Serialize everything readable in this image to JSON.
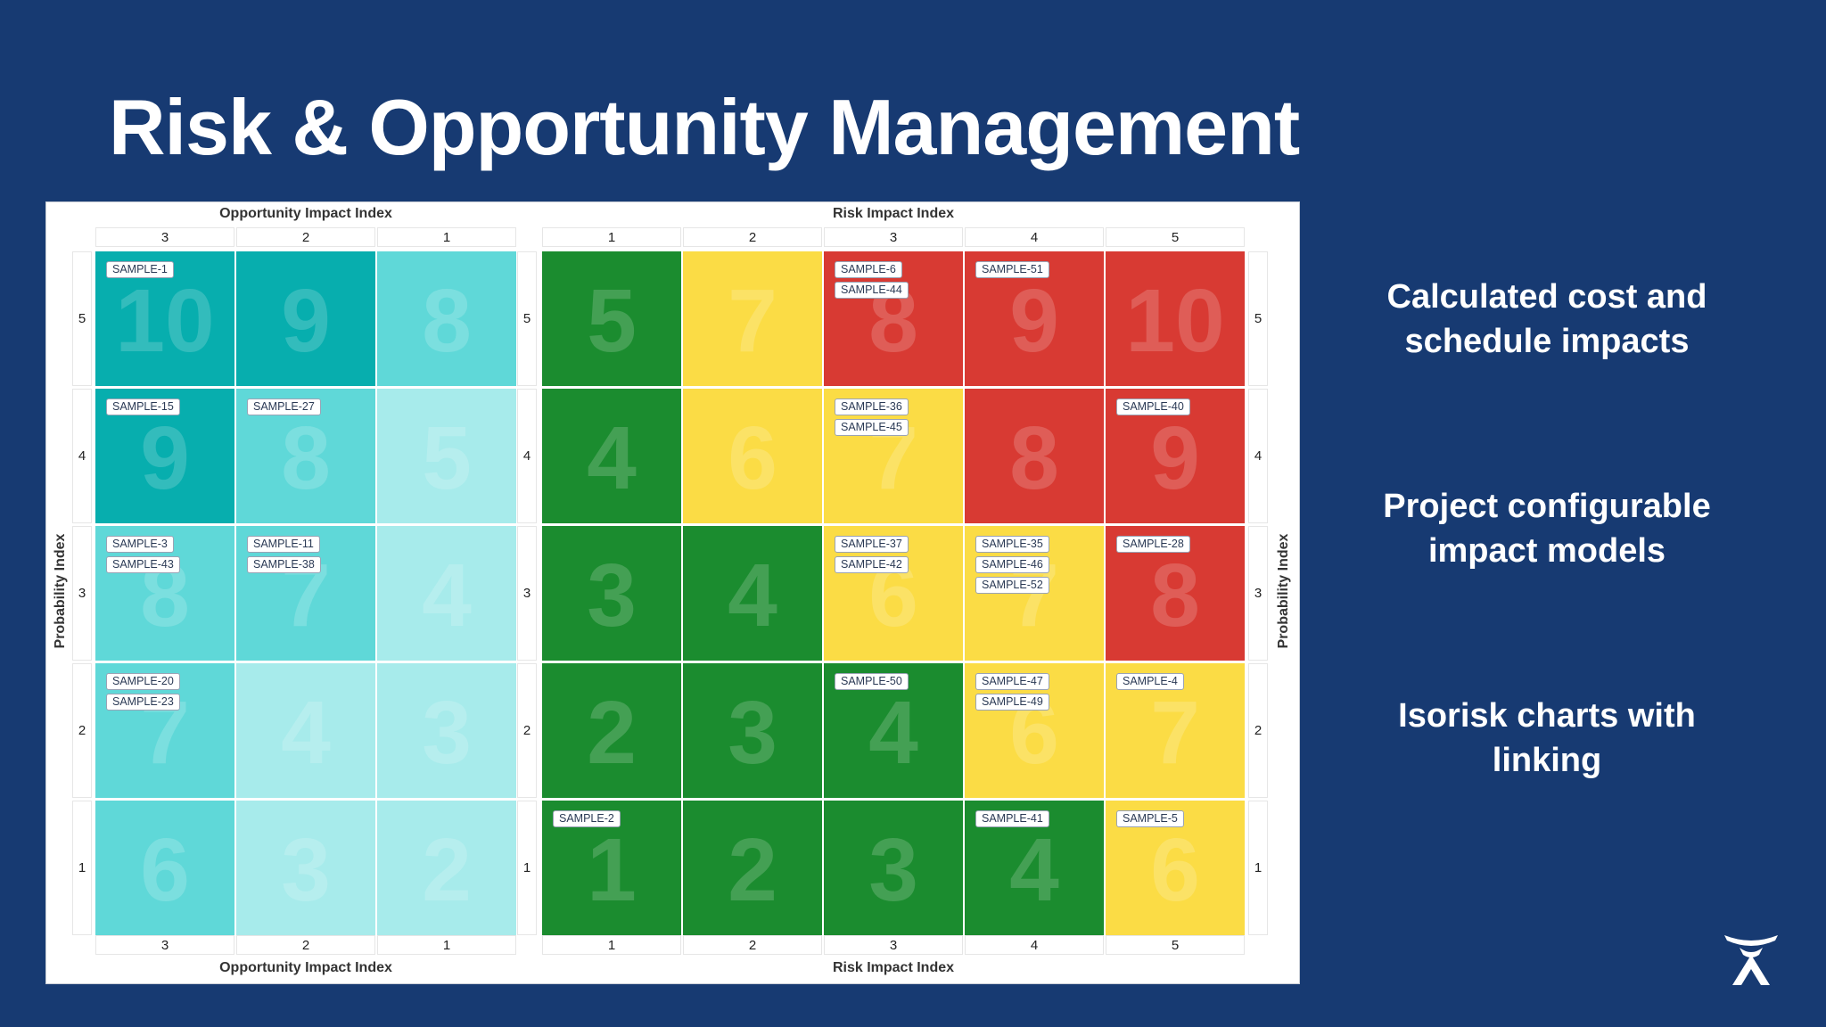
{
  "slide": {
    "title": "Risk & Opportunity Management",
    "bullets": [
      "Calculated cost and schedule impacts",
      "Project configurable impact  models",
      "Isorisk charts with linking"
    ],
    "logo_icon": "atlassian-logo-icon"
  },
  "colors": {
    "background": "#173a72",
    "opportunity_dark": "#07aeae",
    "opportunity_mid": "#5fd8d8",
    "opportunity_light": "#a7ebeb",
    "risk_green": "#1b8c2f",
    "risk_yellow": "#fbdc45",
    "risk_red": "#d83a33"
  },
  "opportunity": {
    "axis_title": "Opportunity Impact Index",
    "columns": [
      "3",
      "2",
      "1"
    ],
    "rows": [
      {
        "prob": "5",
        "cells": [
          {
            "score": "10",
            "tone": "dark",
            "tags": [
              "SAMPLE-1"
            ]
          },
          {
            "score": "9",
            "tone": "dark",
            "tags": []
          },
          {
            "score": "8",
            "tone": "mid",
            "tags": []
          }
        ]
      },
      {
        "prob": "4",
        "cells": [
          {
            "score": "9",
            "tone": "dark",
            "tags": [
              "SAMPLE-15"
            ]
          },
          {
            "score": "8",
            "tone": "mid",
            "tags": [
              "SAMPLE-27"
            ]
          },
          {
            "score": "5",
            "tone": "light",
            "tags": []
          }
        ]
      },
      {
        "prob": "3",
        "cells": [
          {
            "score": "8",
            "tone": "mid",
            "tags": [
              "SAMPLE-3",
              "SAMPLE-43"
            ]
          },
          {
            "score": "7",
            "tone": "mid",
            "tags": [
              "SAMPLE-11",
              "SAMPLE-38"
            ]
          },
          {
            "score": "4",
            "tone": "light",
            "tags": []
          }
        ]
      },
      {
        "prob": "2",
        "cells": [
          {
            "score": "7",
            "tone": "mid",
            "tags": [
              "SAMPLE-20",
              "SAMPLE-23"
            ]
          },
          {
            "score": "4",
            "tone": "light",
            "tags": []
          },
          {
            "score": "3",
            "tone": "light",
            "tags": []
          }
        ]
      },
      {
        "prob": "1",
        "cells": [
          {
            "score": "6",
            "tone": "mid",
            "tags": []
          },
          {
            "score": "3",
            "tone": "light",
            "tags": []
          },
          {
            "score": "2",
            "tone": "light",
            "tags": []
          }
        ]
      }
    ]
  },
  "risk": {
    "axis_title": "Risk Impact Index",
    "columns": [
      "1",
      "2",
      "3",
      "4",
      "5"
    ],
    "rows": [
      {
        "prob": "5",
        "cells": [
          {
            "score": "5",
            "tone": "green",
            "tags": []
          },
          {
            "score": "7",
            "tone": "yellow",
            "tags": []
          },
          {
            "score": "8",
            "tone": "red",
            "tags": [
              "SAMPLE-6",
              "SAMPLE-44"
            ]
          },
          {
            "score": "9",
            "tone": "red",
            "tags": [
              "SAMPLE-51"
            ]
          },
          {
            "score": "10",
            "tone": "red",
            "tags": []
          }
        ]
      },
      {
        "prob": "4",
        "cells": [
          {
            "score": "4",
            "tone": "green",
            "tags": []
          },
          {
            "score": "6",
            "tone": "yellow",
            "tags": []
          },
          {
            "score": "7",
            "tone": "yellow",
            "tags": [
              "SAMPLE-36",
              "SAMPLE-45"
            ]
          },
          {
            "score": "8",
            "tone": "red",
            "tags": []
          },
          {
            "score": "9",
            "tone": "red",
            "tags": [
              "SAMPLE-40"
            ]
          }
        ]
      },
      {
        "prob": "3",
        "cells": [
          {
            "score": "3",
            "tone": "green",
            "tags": []
          },
          {
            "score": "4",
            "tone": "green",
            "tags": []
          },
          {
            "score": "6",
            "tone": "yellow",
            "tags": [
              "SAMPLE-37",
              "SAMPLE-42"
            ]
          },
          {
            "score": "7",
            "tone": "yellow",
            "tags": [
              "SAMPLE-35",
              "SAMPLE-46",
              "SAMPLE-52"
            ]
          },
          {
            "score": "8",
            "tone": "red",
            "tags": [
              "SAMPLE-28"
            ]
          }
        ]
      },
      {
        "prob": "2",
        "cells": [
          {
            "score": "2",
            "tone": "green",
            "tags": []
          },
          {
            "score": "3",
            "tone": "green",
            "tags": []
          },
          {
            "score": "4",
            "tone": "green",
            "tags": [
              "SAMPLE-50"
            ]
          },
          {
            "score": "6",
            "tone": "yellow",
            "tags": [
              "SAMPLE-47",
              "SAMPLE-49"
            ]
          },
          {
            "score": "7",
            "tone": "yellow",
            "tags": [
              "SAMPLE-4"
            ]
          }
        ]
      },
      {
        "prob": "1",
        "cells": [
          {
            "score": "1",
            "tone": "green",
            "tags": [
              "SAMPLE-2"
            ]
          },
          {
            "score": "2",
            "tone": "green",
            "tags": []
          },
          {
            "score": "3",
            "tone": "green",
            "tags": []
          },
          {
            "score": "4",
            "tone": "green",
            "tags": [
              "SAMPLE-41"
            ]
          },
          {
            "score": "6",
            "tone": "yellow",
            "tags": [
              "SAMPLE-5"
            ]
          }
        ]
      }
    ]
  },
  "probability_axis_title": "Probability Index"
}
